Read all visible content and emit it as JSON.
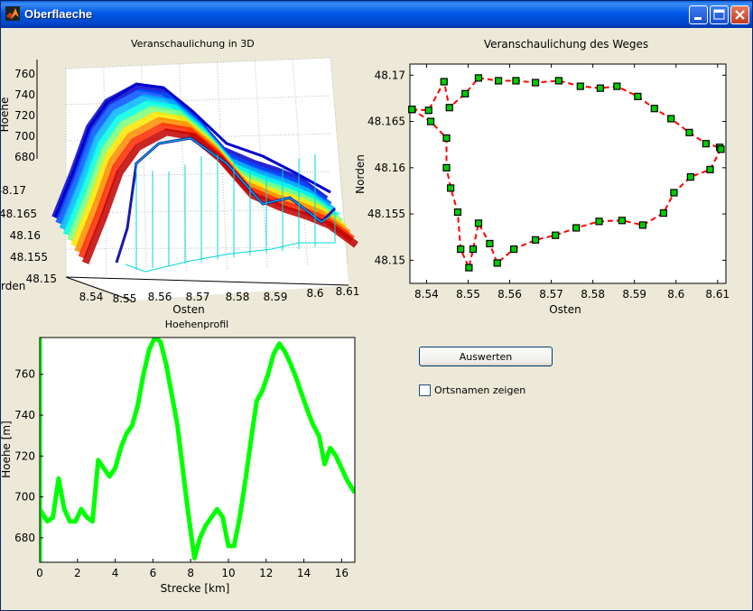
{
  "window": {
    "title": "Oberflaeche",
    "icon": "matlab-icon",
    "controls": [
      "minimize-icon",
      "maximize-icon",
      "close-icon"
    ]
  },
  "plot3d": {
    "title": "Veranschaulichung in 3D",
    "xlabel": "Osten",
    "ylabel": "Norden",
    "ylabel_visible": "rden",
    "zlabel": "Hoehe",
    "xticks": [
      "8.54",
      "8.55",
      "8.56",
      "8.57",
      "8.58",
      "8.59",
      "8.6",
      "8.61"
    ],
    "yticks": [
      "48.17",
      "48.165",
      "48.16",
      "48.155",
      "48.15"
    ],
    "zticks": [
      "760",
      "740",
      "720",
      "700",
      "680"
    ]
  },
  "route_plot": {
    "title": "Veranschaulichung des Weges",
    "xlabel": "Osten",
    "ylabel": "Norden",
    "xticks": [
      "8.54",
      "8.55",
      "8.56",
      "8.57",
      "8.58",
      "8.59",
      "8.6",
      "8.61"
    ],
    "yticks": [
      "48.17",
      "48.165",
      "48.16",
      "48.155",
      "48.15"
    ]
  },
  "profile_plot": {
    "title": "Hoehenprofil",
    "xlabel": "Strecke [km]",
    "ylabel": "Hoehe [m]",
    "xticks": [
      "0",
      "2",
      "4",
      "6",
      "8",
      "10",
      "12",
      "14",
      "16"
    ],
    "yticks": [
      "760",
      "740",
      "720",
      "700",
      "680"
    ]
  },
  "controls": {
    "evaluate_label": "Auswerten",
    "show_names_label": "Ortsnamen zeigen",
    "show_names_checked": false
  },
  "chart_data": [
    {
      "type": "line",
      "name": "route",
      "title": "Veranschaulichung des Weges",
      "xlabel": "Osten",
      "ylabel": "Norden",
      "xlim": [
        8.536,
        8.612
      ],
      "ylim": [
        48.1475,
        48.1712
      ],
      "line_color": "#ff0000",
      "marker_color": "#00cc00",
      "points": [
        [
          8.5365,
          48.1663
        ],
        [
          8.5405,
          48.1662
        ],
        [
          8.5442,
          48.1693
        ],
        [
          8.5455,
          48.1665
        ],
        [
          8.5493,
          48.168
        ],
        [
          8.5525,
          48.1697
        ],
        [
          8.5573,
          48.1694
        ],
        [
          8.5615,
          48.1694
        ],
        [
          8.5662,
          48.1692
        ],
        [
          8.5718,
          48.1694
        ],
        [
          8.577,
          48.1688
        ],
        [
          8.5818,
          48.1686
        ],
        [
          8.5858,
          48.1688
        ],
        [
          8.5908,
          48.1677
        ],
        [
          8.5948,
          48.1664
        ],
        [
          8.5988,
          48.1653
        ],
        [
          8.6032,
          48.1638
        ],
        [
          8.6072,
          48.1626
        ],
        [
          8.6105,
          48.1622
        ],
        [
          8.6108,
          48.162
        ],
        [
          8.6082,
          48.1598
        ],
        [
          8.6035,
          48.159
        ],
        [
          8.5995,
          48.1573
        ],
        [
          8.597,
          48.1551
        ],
        [
          8.592,
          48.1538
        ],
        [
          8.587,
          48.1543
        ],
        [
          8.5815,
          48.1542
        ],
        [
          8.576,
          48.1535
        ],
        [
          8.571,
          48.1527
        ],
        [
          8.5662,
          48.1522
        ],
        [
          8.561,
          48.1512
        ],
        [
          8.557,
          48.1497
        ],
        [
          8.5552,
          48.1518
        ],
        [
          8.5525,
          48.154
        ],
        [
          8.5512,
          48.1512
        ],
        [
          8.5502,
          48.1492
        ],
        [
          8.5482,
          48.1512
        ],
        [
          8.5475,
          48.1552
        ],
        [
          8.5458,
          48.1578
        ],
        [
          8.5448,
          48.16
        ],
        [
          8.5448,
          48.1632
        ],
        [
          8.541,
          48.165
        ],
        [
          8.5365,
          48.1663
        ]
      ]
    },
    {
      "type": "line",
      "name": "elevation_profile",
      "title": "Hoehenprofil",
      "xlabel": "Strecke [km]",
      "ylabel": "Hoehe [m]",
      "xlim": [
        0,
        16.7
      ],
      "ylim": [
        668,
        778
      ],
      "line_color": "#00ff00",
      "x": [
        0,
        0.4,
        0.7,
        1.0,
        1.3,
        1.6,
        1.9,
        2.2,
        2.5,
        2.8,
        3.1,
        3.4,
        3.7,
        4.0,
        4.3,
        4.6,
        4.9,
        5.2,
        5.5,
        5.8,
        6.1,
        6.4,
        6.7,
        7.0,
        7.3,
        7.6,
        7.9,
        8.2,
        8.5,
        8.8,
        9.1,
        9.4,
        9.7,
        10.0,
        10.3,
        10.6,
        10.9,
        11.2,
        11.5,
        11.8,
        12.1,
        12.4,
        12.7,
        13.0,
        13.3,
        13.6,
        13.9,
        14.2,
        14.5,
        14.8,
        15.1,
        15.4,
        15.7,
        16.0,
        16.3,
        16.7
      ],
      "y": [
        694,
        688,
        690,
        709,
        694,
        688,
        688,
        694,
        690,
        688,
        718,
        714,
        710,
        714,
        724,
        731,
        735,
        745,
        760,
        772,
        778,
        776,
        765,
        750,
        735,
        712,
        690,
        670,
        680,
        686,
        690,
        694,
        690,
        676,
        676,
        690,
        708,
        728,
        747,
        752,
        760,
        770,
        775,
        771,
        765,
        758,
        750,
        742,
        735,
        730,
        716,
        724,
        720,
        714,
        708,
        702
      ]
    }
  ]
}
